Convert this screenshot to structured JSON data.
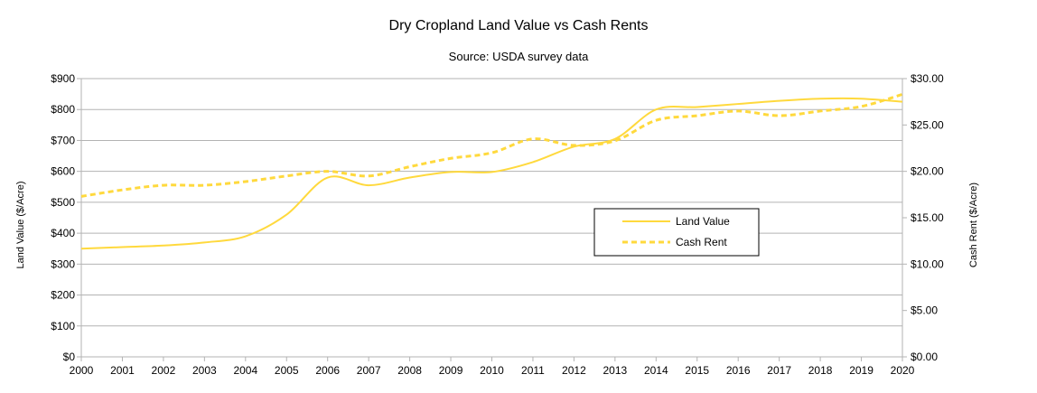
{
  "chart_data": {
    "type": "line",
    "title": "Dry Cropland Land Value vs Cash Rents",
    "subtitle": "Source: USDA survey data",
    "xlabel": "",
    "ylabel_left": "Land Value ($/Acre)",
    "ylabel_right": "Cash Rent ($/Acre)",
    "x_ticks": [
      "2000",
      "2001",
      "2002",
      "2003",
      "2004",
      "2005",
      "2006",
      "2007",
      "2008",
      "2009",
      "2010",
      "2011",
      "2012",
      "2013",
      "2014",
      "2015",
      "2016",
      "2017",
      "2018",
      "2019",
      "2020"
    ],
    "xlim": [
      2000,
      2020
    ],
    "ylim_left": [
      0,
      900
    ],
    "ylim_right": [
      0,
      30
    ],
    "y_left_ticks": [
      "$0",
      "$100",
      "$200",
      "$300",
      "$400",
      "$500",
      "$600",
      "$700",
      "$800",
      "$900"
    ],
    "y_right_ticks": [
      "$0.00",
      "$5.00",
      "$10.00",
      "$15.00",
      "$20.00",
      "$25.00",
      "$30.00"
    ],
    "grid": true,
    "legend_position": "center-right",
    "line_color": "#FFD93D",
    "series": [
      {
        "name": "Land Value",
        "axis": "left",
        "style": "solid",
        "x": [
          2000,
          2001,
          2002,
          2003,
          2004,
          2005,
          2006,
          2007,
          2008,
          2009,
          2010,
          2011,
          2012,
          2013,
          2014,
          2015,
          2016,
          2017,
          2018,
          2019,
          2020
        ],
        "values": [
          350,
          355,
          360,
          370,
          390,
          460,
          580,
          555,
          580,
          598,
          598,
          630,
          680,
          705,
          800,
          808,
          818,
          828,
          835,
          835,
          825
        ]
      },
      {
        "name": "Cash Rent",
        "axis": "right",
        "style": "dashed",
        "x": [
          2000,
          2001,
          2002,
          2003,
          2004,
          2005,
          2006,
          2007,
          2008,
          2009,
          2010,
          2011,
          2012,
          2013,
          2014,
          2015,
          2016,
          2017,
          2018,
          2019,
          2020
        ],
        "values": [
          17.3,
          18.0,
          18.5,
          18.5,
          18.9,
          19.5,
          20.0,
          19.5,
          20.5,
          21.4,
          22.0,
          23.5,
          22.8,
          23.3,
          25.5,
          26.0,
          26.5,
          26.0,
          26.5,
          27.0,
          28.3
        ]
      }
    ]
  }
}
